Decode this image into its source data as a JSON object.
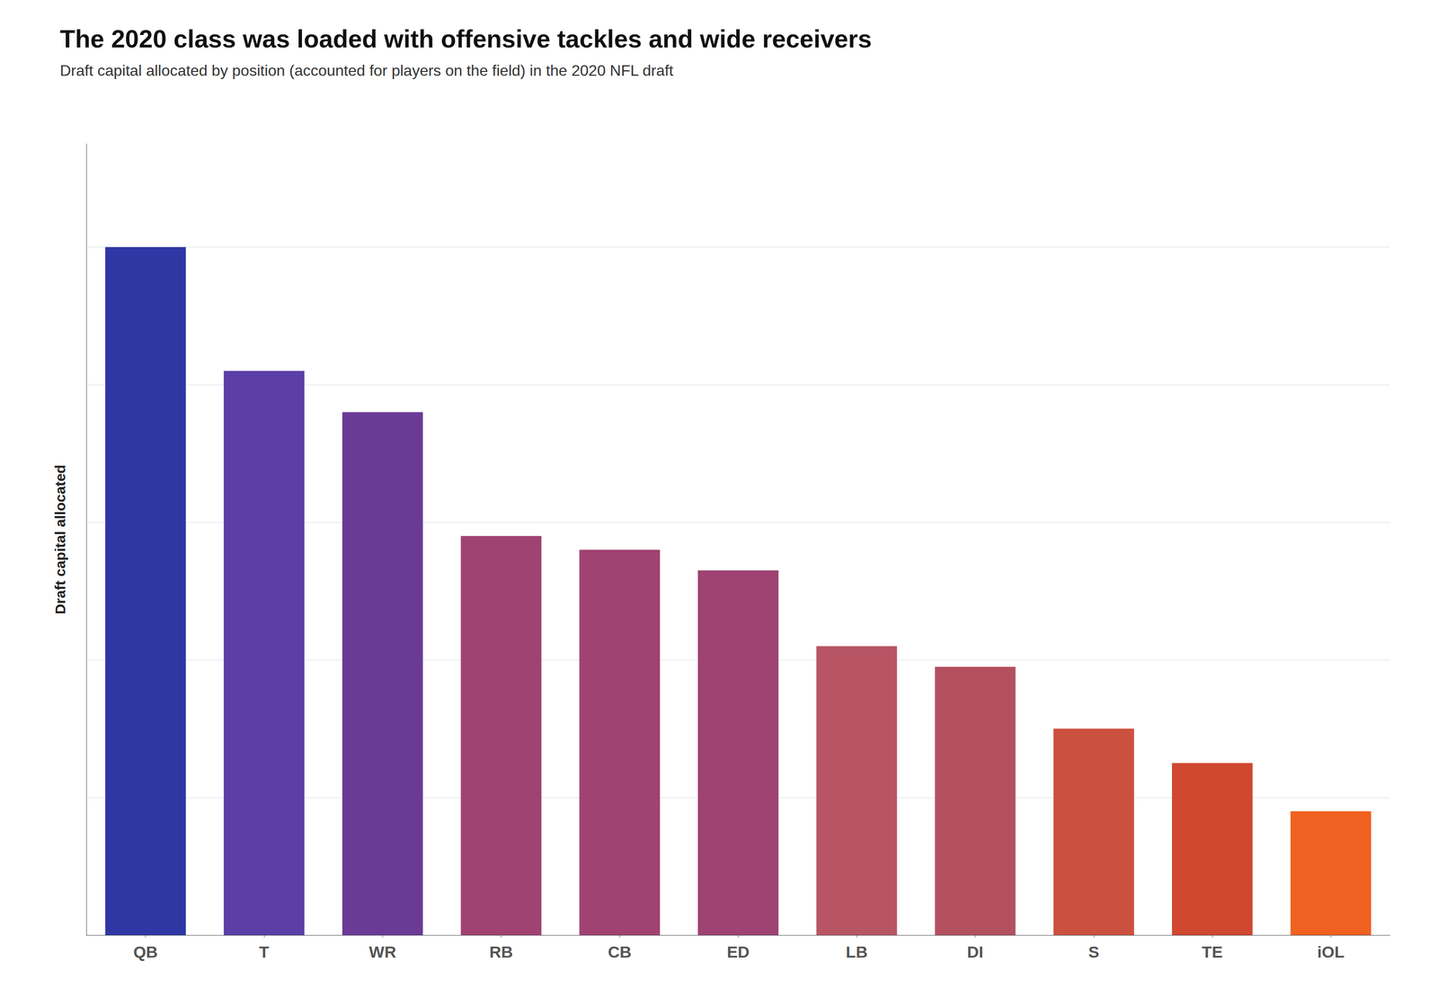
{
  "chart_data": {
    "type": "bar",
    "title": "The 2020 class was loaded with offensive tackles and wide receivers",
    "subtitle": "Draft capital allocated by position (accounted for players on the field) in the 2020 NFL draft",
    "ylabel": "Draft capital allocated",
    "categories": [
      "QB",
      "T",
      "WR",
      "RB",
      "CB",
      "ED",
      "LB",
      "DI",
      "S",
      "TE",
      "iOL"
    ],
    "values": [
      100,
      82,
      76,
      58,
      56,
      53,
      42,
      39,
      30,
      25,
      18
    ],
    "colors": [
      "#2e37a4",
      "#5b3ea6",
      "#6b3a96",
      "#a04272",
      "#a04272",
      "#9e4272",
      "#b85565",
      "#b25060",
      "#cc5040",
      "#d04830",
      "#f06020"
    ],
    "ylim": [
      0,
      115
    ],
    "yticks": [
      20,
      40,
      60,
      80,
      100
    ],
    "grid": true,
    "tick_labels": "x"
  }
}
